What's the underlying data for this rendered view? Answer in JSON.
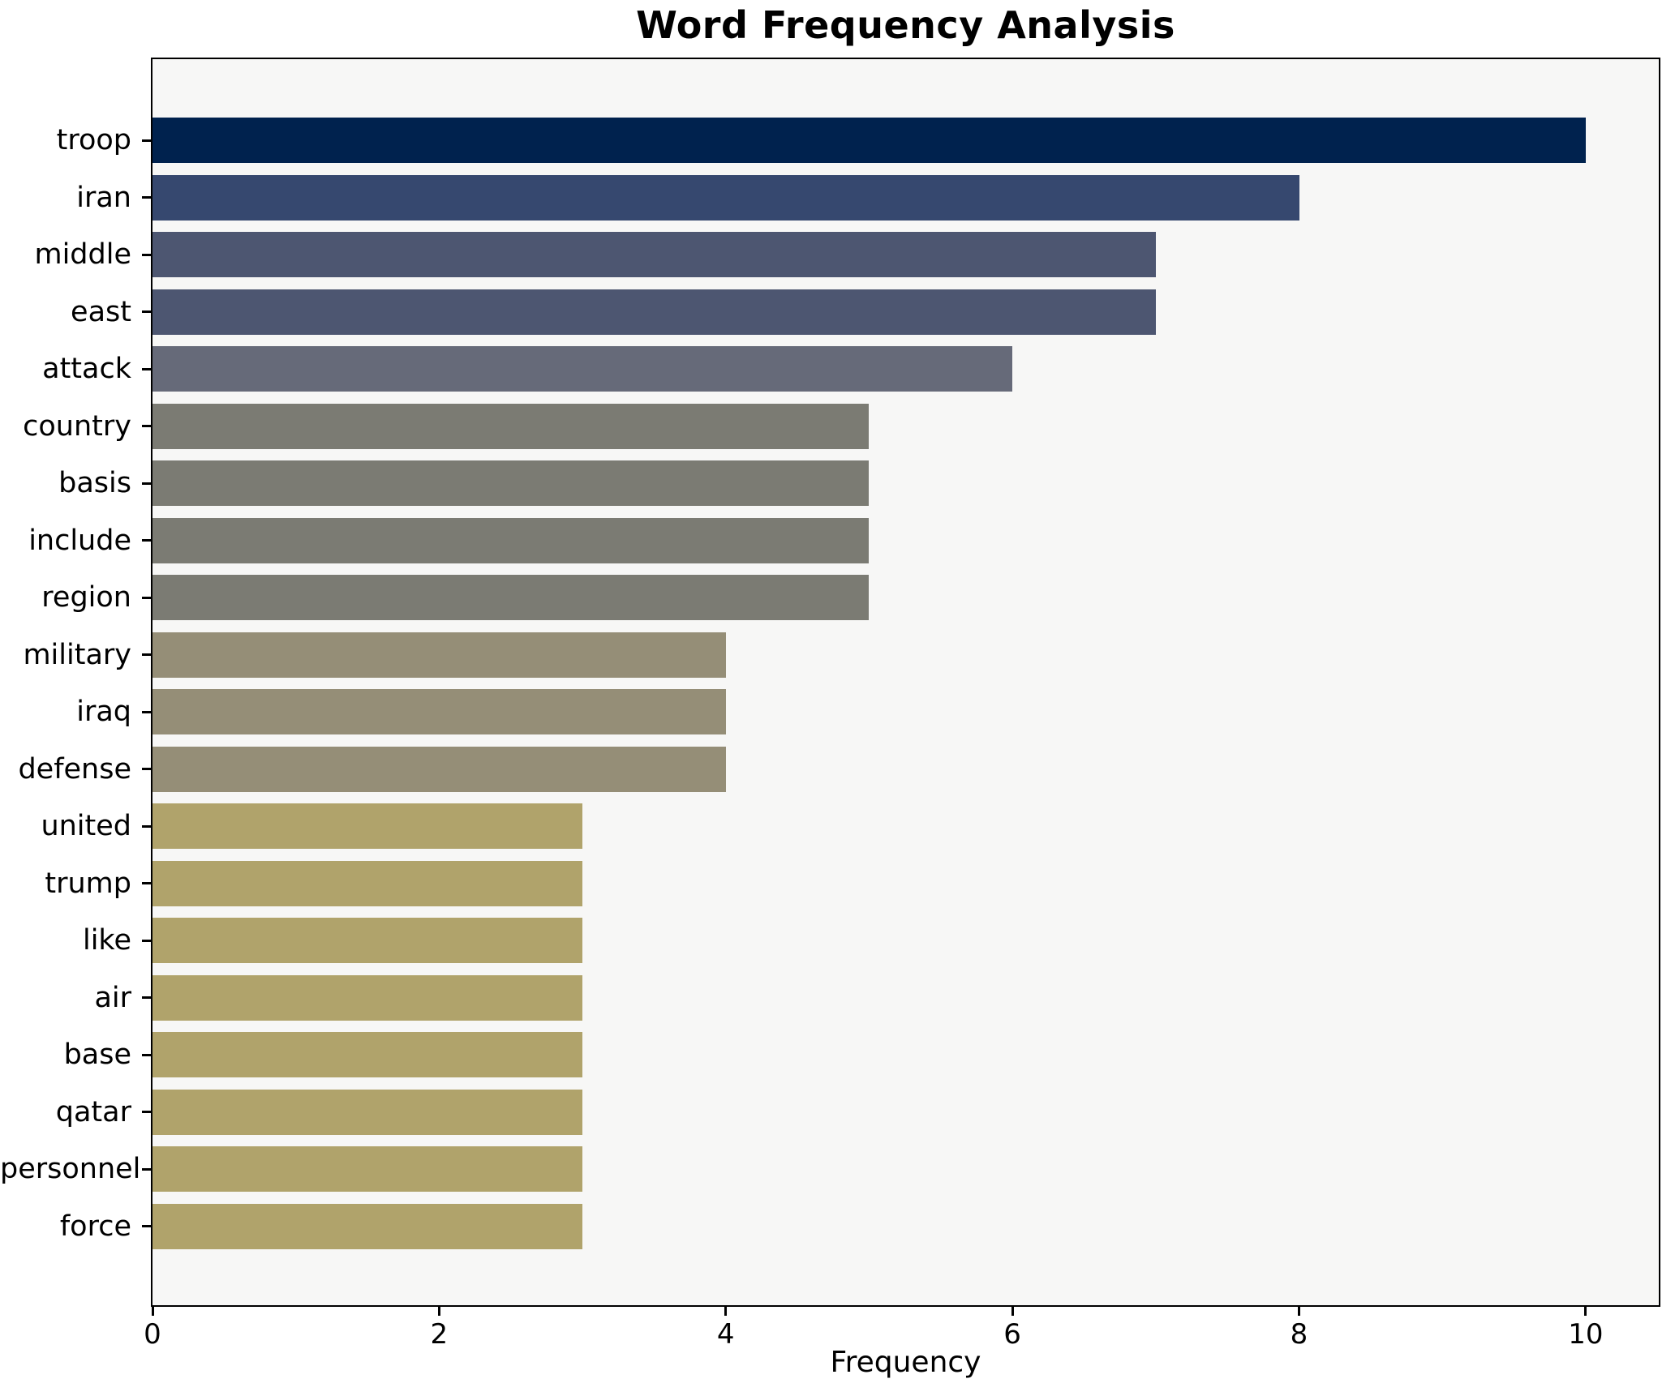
{
  "chart_data": {
    "type": "bar",
    "orientation": "horizontal",
    "title": "Word Frequency Analysis",
    "xlabel": "Frequency",
    "categories": [
      "troop",
      "iran",
      "middle",
      "east",
      "attack",
      "country",
      "basis",
      "include",
      "region",
      "military",
      "iraq",
      "defense",
      "united",
      "trump",
      "like",
      "air",
      "base",
      "qatar",
      "personnel",
      "force"
    ],
    "values": [
      10,
      8,
      7,
      7,
      6,
      5,
      5,
      5,
      5,
      4,
      4,
      4,
      3,
      3,
      3,
      3,
      3,
      3,
      3,
      3
    ],
    "bar_colors": [
      "#00224e",
      "#36486f",
      "#4d5671",
      "#4d5671",
      "#666a79",
      "#7b7b73",
      "#7b7b73",
      "#7b7b73",
      "#7b7b73",
      "#958e77",
      "#958e77",
      "#958e77",
      "#b0a36b",
      "#b0a36b",
      "#b0a36b",
      "#b0a36b",
      "#b0a36b",
      "#b0a36b",
      "#b0a36b",
      "#b0a36b"
    ],
    "x_ticks": [
      0,
      2,
      4,
      6,
      8,
      10
    ],
    "xlim": [
      0,
      10.51
    ],
    "grid": false,
    "legend": "none",
    "plot_bg": "#f7f7f6",
    "figure_bg": "#ffffff"
  }
}
